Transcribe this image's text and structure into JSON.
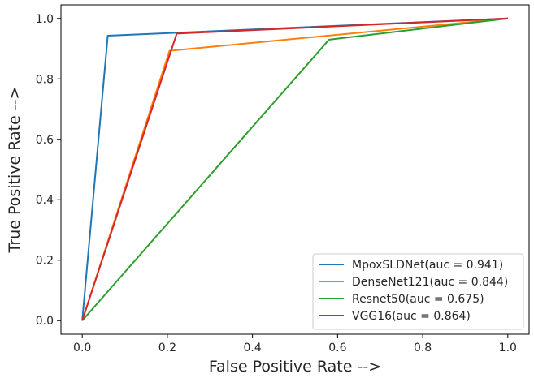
{
  "chart_data": {
    "type": "line",
    "xlabel": "False Positive Rate -->",
    "ylabel": "True Positive Rate -->",
    "xlim": [
      -0.05,
      1.05
    ],
    "ylim": [
      -0.045,
      1.045
    ],
    "xticks": [
      0.0,
      0.2,
      0.4,
      0.6,
      0.8,
      1.0
    ],
    "yticks": [
      0.0,
      0.2,
      0.4,
      0.6,
      0.8,
      1.0
    ],
    "xtick_labels": [
      "0.0",
      "0.2",
      "0.4",
      "0.6",
      "0.8",
      "1.0"
    ],
    "ytick_labels": [
      "0.0",
      "0.2",
      "0.4",
      "0.6",
      "0.8",
      "1.0"
    ],
    "grid": false,
    "legend_position": "bottom-right",
    "series": [
      {
        "name": "MpoxSLDNet(auc = 0.941)",
        "color": "#1f77b4",
        "x": [
          0.0,
          0.06,
          1.0
        ],
        "y": [
          0.0,
          0.943,
          1.0
        ]
      },
      {
        "name": "DenseNet121(auc = 0.844)",
        "color": "#ff7f0e",
        "x": [
          0.0,
          0.205,
          1.0
        ],
        "y": [
          0.0,
          0.893,
          1.0
        ]
      },
      {
        "name": "Resnet50(auc = 0.675)",
        "color": "#2ca02c",
        "x": [
          0.0,
          0.58,
          1.0
        ],
        "y": [
          0.0,
          0.93,
          1.0
        ]
      },
      {
        "name": "VGG16(auc = 0.864)",
        "color": "#d62728",
        "x": [
          0.0,
          0.222,
          1.0
        ],
        "y": [
          0.0,
          0.95,
          1.0
        ]
      }
    ]
  }
}
